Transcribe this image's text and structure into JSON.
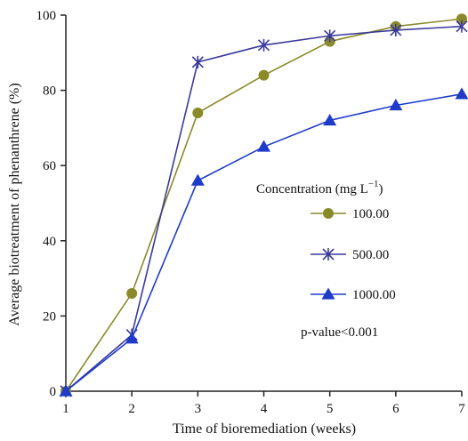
{
  "chart_data": {
    "type": "line",
    "xlabel": "Time of bioremediation (weeks)",
    "ylabel": "Average biotreatment of phenanthrene (%)",
    "x": [
      1,
      2,
      3,
      4,
      5,
      6,
      7
    ],
    "xlim": [
      1,
      7
    ],
    "ylim": [
      0,
      100
    ],
    "xticks": [
      "1",
      "2",
      "3",
      "4",
      "5",
      "6",
      "7"
    ],
    "yticks": [
      "0",
      "20",
      "40",
      "60",
      "80",
      "100"
    ],
    "grid": false,
    "legend": {
      "title": "Concentration (mg L",
      "title_sup": "−1",
      "title_end": ")",
      "placement": "center-right"
    },
    "series": [
      {
        "name": "100.00",
        "color": "#8a8a2a",
        "marker": "circle",
        "values": [
          0,
          26,
          74,
          84,
          93,
          97,
          99
        ]
      },
      {
        "name": "500.00",
        "color": "#3a3a9a",
        "marker": "x",
        "values": [
          0,
          15,
          87.5,
          92,
          94.5,
          96,
          97
        ]
      },
      {
        "name": "1000.00",
        "color": "#1e3cc8",
        "marker": "triangle",
        "values": [
          0,
          14,
          56,
          65,
          72,
          76,
          79
        ]
      }
    ],
    "annotations": [
      "p-value<0.001"
    ]
  }
}
